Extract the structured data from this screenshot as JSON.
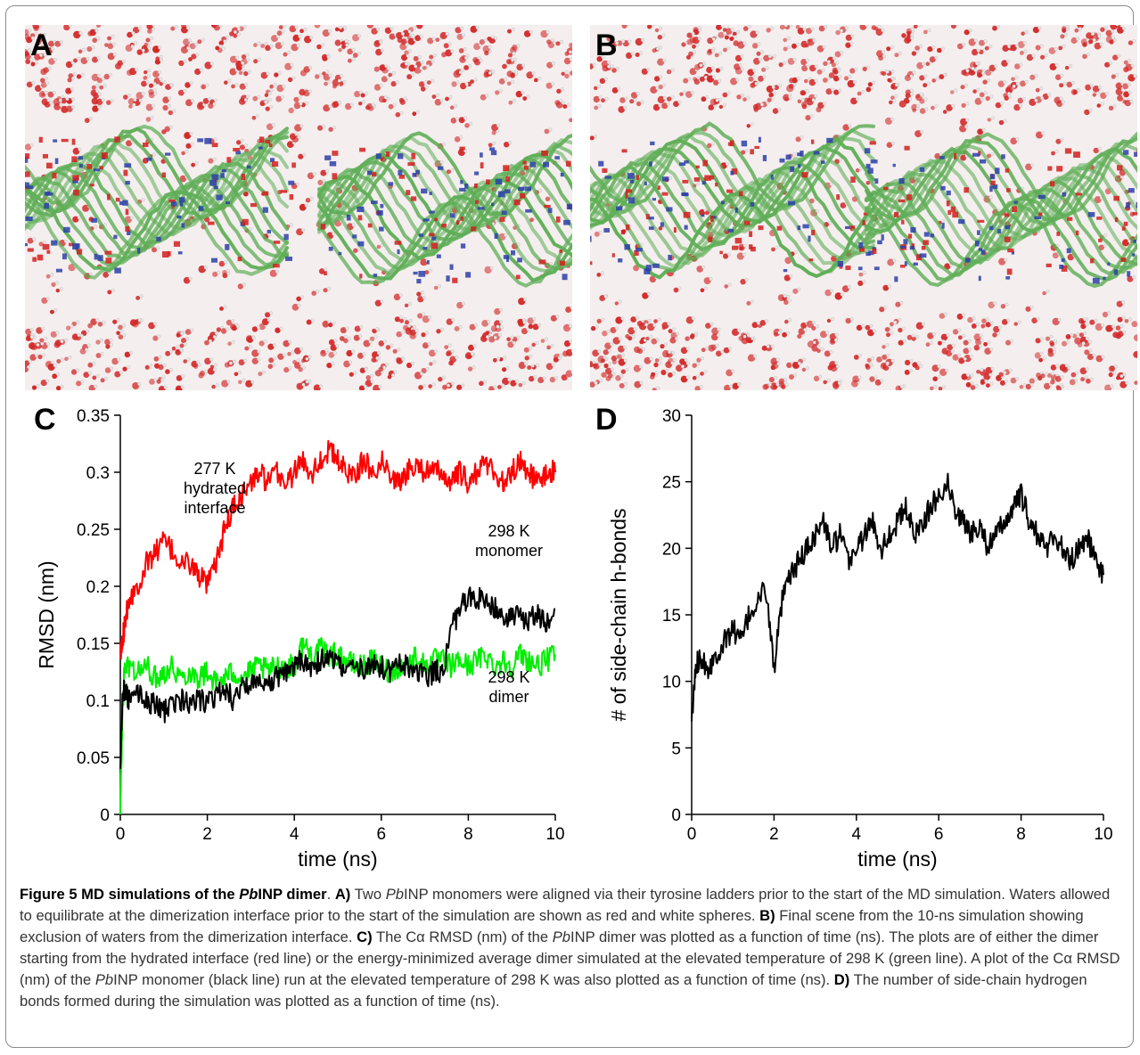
{
  "panels": {
    "a": {
      "letter": "A"
    },
    "b": {
      "letter": "B"
    },
    "c": {
      "letter": "C"
    },
    "d": {
      "letter": "D"
    }
  },
  "colors": {
    "water_red": "#d42a2a",
    "water_white": "#e8e8e8",
    "carbon_green": "#5fae57",
    "nitrogen_blue": "#2b3fa8",
    "oxygen_red": "#d21f1f",
    "series_red": "#ff0000",
    "series_green": "#00ee00",
    "series_black": "#000000"
  },
  "chart_data": [
    {
      "type": "line",
      "xlabel": "time (ns)",
      "ylabel": "RMSD (nm)",
      "xlim": [
        0,
        10
      ],
      "ylim": [
        0,
        0.35
      ],
      "xticks": [
        "0",
        "2",
        "4",
        "6",
        "8",
        "10"
      ],
      "yticks": [
        "0",
        "0.05",
        "0.1",
        "0.15",
        "0.2",
        "0.25",
        "0.3",
        "0.35"
      ],
      "annotations": [
        {
          "lines": [
            "277 K",
            "hydrated",
            "interface"
          ]
        },
        {
          "lines": [
            "298 K",
            "monomer"
          ]
        },
        {
          "lines": [
            "298 K",
            "dimer"
          ]
        }
      ],
      "series": [
        {
          "color": "#ff0000",
          "x": [
            0,
            0.05,
            0.1,
            0.2,
            0.4,
            0.6,
            0.8,
            1.0,
            1.2,
            1.4,
            1.6,
            1.8,
            2.0,
            2.2,
            2.4,
            2.6,
            2.8,
            3.0,
            3.2,
            3.4,
            3.6,
            3.8,
            4.0,
            4.2,
            4.4,
            4.6,
            4.8,
            5.0,
            5.2,
            5.4,
            5.6,
            5.8,
            6.0,
            6.2,
            6.4,
            6.6,
            6.8,
            7.0,
            7.2,
            7.4,
            7.6,
            7.8,
            8.0,
            8.2,
            8.4,
            8.6,
            8.8,
            9.0,
            9.2,
            9.4,
            9.6,
            9.8,
            10.0
          ],
          "y": [
            0.14,
            0.15,
            0.17,
            0.19,
            0.2,
            0.22,
            0.23,
            0.24,
            0.23,
            0.22,
            0.22,
            0.21,
            0.2,
            0.22,
            0.25,
            0.27,
            0.28,
            0.29,
            0.3,
            0.29,
            0.3,
            0.29,
            0.3,
            0.31,
            0.3,
            0.31,
            0.32,
            0.31,
            0.3,
            0.3,
            0.31,
            0.3,
            0.31,
            0.3,
            0.29,
            0.3,
            0.31,
            0.3,
            0.3,
            0.3,
            0.29,
            0.3,
            0.29,
            0.3,
            0.31,
            0.3,
            0.29,
            0.3,
            0.31,
            0.3,
            0.29,
            0.3,
            0.3
          ]
        },
        {
          "color": "#00ee00",
          "x": [
            0,
            0.05,
            0.1,
            0.2,
            0.4,
            0.6,
            0.8,
            1.0,
            1.2,
            1.4,
            1.6,
            1.8,
            2.0,
            2.2,
            2.4,
            2.6,
            2.8,
            3.0,
            3.2,
            3.4,
            3.6,
            3.8,
            4.0,
            4.2,
            4.4,
            4.6,
            4.8,
            5.0,
            5.2,
            5.4,
            5.6,
            5.8,
            6.0,
            6.2,
            6.4,
            6.6,
            6.8,
            7.0,
            7.2,
            7.4,
            7.6,
            7.8,
            8.0,
            8.2,
            8.4,
            8.6,
            8.8,
            9.0,
            9.2,
            9.4,
            9.6,
            9.8,
            10.0
          ],
          "y": [
            0.0,
            0.09,
            0.13,
            0.13,
            0.125,
            0.13,
            0.12,
            0.125,
            0.13,
            0.12,
            0.125,
            0.12,
            0.125,
            0.115,
            0.12,
            0.125,
            0.12,
            0.125,
            0.13,
            0.125,
            0.13,
            0.13,
            0.13,
            0.15,
            0.14,
            0.145,
            0.14,
            0.14,
            0.135,
            0.13,
            0.13,
            0.135,
            0.13,
            0.125,
            0.13,
            0.13,
            0.14,
            0.13,
            0.135,
            0.135,
            0.13,
            0.135,
            0.13,
            0.135,
            0.14,
            0.13,
            0.135,
            0.13,
            0.14,
            0.135,
            0.13,
            0.135,
            0.14
          ]
        },
        {
          "color": "#000000",
          "x": [
            0,
            0.05,
            0.1,
            0.2,
            0.4,
            0.6,
            0.8,
            1.0,
            1.2,
            1.4,
            1.6,
            1.8,
            2.0,
            2.2,
            2.4,
            2.6,
            2.8,
            3.0,
            3.2,
            3.4,
            3.6,
            3.8,
            4.0,
            4.2,
            4.4,
            4.6,
            4.8,
            5.0,
            5.2,
            5.4,
            5.6,
            5.8,
            6.0,
            6.2,
            6.4,
            6.6,
            6.8,
            7.0,
            7.2,
            7.4,
            7.6,
            7.8,
            8.0,
            8.2,
            8.4,
            8.6,
            8.8,
            9.0,
            9.2,
            9.4,
            9.6,
            9.8,
            10.0
          ],
          "y": [
            0.04,
            0.1,
            0.11,
            0.1,
            0.105,
            0.1,
            0.095,
            0.09,
            0.095,
            0.1,
            0.095,
            0.1,
            0.1,
            0.105,
            0.11,
            0.1,
            0.11,
            0.115,
            0.12,
            0.115,
            0.12,
            0.125,
            0.13,
            0.135,
            0.13,
            0.135,
            0.14,
            0.13,
            0.125,
            0.13,
            0.125,
            0.13,
            0.13,
            0.125,
            0.13,
            0.13,
            0.125,
            0.12,
            0.125,
            0.125,
            0.16,
            0.18,
            0.19,
            0.19,
            0.185,
            0.18,
            0.175,
            0.17,
            0.175,
            0.17,
            0.175,
            0.17,
            0.18
          ]
        }
      ]
    },
    {
      "type": "line",
      "xlabel": "time (ns)",
      "ylabel": "# of side-chain h-bonds",
      "xlim": [
        0,
        10
      ],
      "ylim": [
        0,
        30
      ],
      "xticks": [
        "0",
        "2",
        "4",
        "6",
        "8",
        "10"
      ],
      "yticks": [
        "0",
        "5",
        "10",
        "15",
        "20",
        "25",
        "30"
      ],
      "series": [
        {
          "color": "#000000",
          "x": [
            0,
            0.1,
            0.2,
            0.4,
            0.6,
            0.8,
            1.0,
            1.2,
            1.4,
            1.6,
            1.8,
            2.0,
            2.2,
            2.4,
            2.6,
            2.8,
            3.0,
            3.2,
            3.4,
            3.6,
            3.8,
            4.0,
            4.2,
            4.4,
            4.6,
            4.8,
            5.0,
            5.2,
            5.4,
            5.6,
            5.8,
            6.0,
            6.2,
            6.4,
            6.6,
            6.8,
            7.0,
            7.2,
            7.4,
            7.6,
            7.8,
            8.0,
            8.2,
            8.4,
            8.6,
            8.8,
            9.0,
            9.2,
            9.4,
            9.6,
            9.8,
            10.0
          ],
          "y": [
            7,
            11,
            12,
            11,
            12,
            13,
            14,
            13,
            15,
            16,
            17,
            11,
            16,
            18,
            19,
            20,
            21,
            22,
            20,
            21,
            19,
            20,
            21,
            22,
            20,
            21,
            22,
            23,
            21,
            22,
            23,
            24,
            25,
            23,
            22,
            21,
            22,
            20,
            21,
            22,
            23,
            24,
            22,
            21,
            20,
            21,
            20,
            19,
            20,
            21,
            19,
            18
          ]
        }
      ]
    }
  ],
  "caption": {
    "figure_label": "Figure 5",
    "title_pre": "MD simulations of the ",
    "title_ital": "Pb",
    "title_post": "INP dimer",
    "title_end": ".",
    "a_label": "A)",
    "a_text_1": "Two ",
    "a_ital": "Pb",
    "a_text_2": "INP monomers were aligned via their tyrosine ladders prior to the start of the MD simulation. Waters allowed to equilibrate at the dimerization interface prior to the start of the simulation are shown as red and white spheres.",
    "b_label": "B)",
    "b_text": "Final scene from the 10-ns simulation showing exclusion of waters from the dimerization interface.",
    "c_label": "C)",
    "c_text_1": "The Cα RMSD (nm) of the ",
    "c_ital_1": "Pb",
    "c_text_2": "INP dimer was plotted as a function of time (ns). The plots are of either the dimer starting from the hydrated interface (red line) or the energy-minimized average dimer simulated at the elevated temperature of 298 K (green line). A plot of the Cα RMSD (nm) of the ",
    "c_ital_2": "Pb",
    "c_text_3": "INP monomer (black line) run at the elevated temperature of 298 K was also plotted as a function of time (ns).",
    "d_label": "D)",
    "d_text": "The number of side-chain hydrogen bonds formed during the simulation was plotted as a function of time (ns)."
  }
}
